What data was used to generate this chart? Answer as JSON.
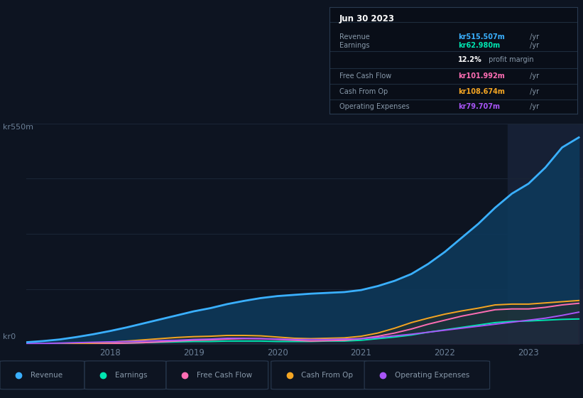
{
  "bg_color": "#0d1421",
  "chart_bg": "#0d1421",
  "grid_color": "#1a2535",
  "title_label": "kr550m",
  "bottom_label": "kr0",
  "x_ticks": [
    "2018",
    "2019",
    "2020",
    "2021",
    "2022",
    "2023"
  ],
  "x_tick_pos": [
    2018,
    2019,
    2020,
    2021,
    2022,
    2023
  ],
  "ylim": [
    0,
    550
  ],
  "xlim": [
    2017.0,
    2023.65
  ],
  "info_box": {
    "title": "Jun 30 2023",
    "rows": [
      {
        "label": "Revenue",
        "value": "kr515.507m",
        "value_color": "#3ab0ff",
        "has_yr": true
      },
      {
        "label": "Earnings",
        "value": "kr62.980m",
        "value_color": "#00e5b0",
        "has_yr": true
      },
      {
        "label": "",
        "value": "12.2%",
        "suffix": " profit margin",
        "value_color": "#ffffff",
        "has_yr": false
      },
      {
        "label": "Free Cash Flow",
        "value": "kr101.992m",
        "value_color": "#ff6eb4",
        "has_yr": true
      },
      {
        "label": "Cash From Op",
        "value": "kr108.674m",
        "value_color": "#f5a623",
        "has_yr": true
      },
      {
        "label": "Operating Expenses",
        "value": "kr79.707m",
        "value_color": "#a855f7",
        "has_yr": true
      }
    ]
  },
  "legend": [
    {
      "label": "Revenue",
      "color": "#3ab0ff"
    },
    {
      "label": "Earnings",
      "color": "#00e5b0"
    },
    {
      "label": "Free Cash Flow",
      "color": "#ff6eb4"
    },
    {
      "label": "Cash From Op",
      "color": "#f5a623"
    },
    {
      "label": "Operating Expenses",
      "color": "#a855f7"
    }
  ],
  "series": {
    "x": [
      2017.0,
      2017.2,
      2017.4,
      2017.6,
      2017.8,
      2018.0,
      2018.2,
      2018.4,
      2018.6,
      2018.8,
      2019.0,
      2019.2,
      2019.4,
      2019.6,
      2019.8,
      2020.0,
      2020.2,
      2020.4,
      2020.6,
      2020.8,
      2021.0,
      2021.2,
      2021.4,
      2021.6,
      2021.8,
      2022.0,
      2022.2,
      2022.4,
      2022.6,
      2022.8,
      2023.0,
      2023.2,
      2023.4,
      2023.6
    ],
    "revenue": [
      5,
      8,
      12,
      18,
      25,
      33,
      42,
      52,
      62,
      72,
      82,
      90,
      100,
      108,
      115,
      120,
      123,
      126,
      128,
      130,
      135,
      145,
      158,
      175,
      200,
      230,
      265,
      300,
      340,
      375,
      400,
      440,
      490,
      515
    ],
    "earnings": [
      0,
      0,
      0,
      0,
      1,
      2,
      3,
      4,
      5,
      6,
      7,
      7,
      8,
      8,
      8,
      7,
      7,
      7,
      8,
      8,
      10,
      14,
      18,
      23,
      30,
      36,
      42,
      48,
      54,
      57,
      58,
      60,
      62,
      63
    ],
    "fcf": [
      -3,
      -2,
      -1,
      0,
      1,
      2,
      3,
      4,
      6,
      8,
      10,
      11,
      13,
      14,
      14,
      12,
      10,
      8,
      9,
      10,
      14,
      20,
      28,
      38,
      50,
      60,
      70,
      78,
      86,
      88,
      88,
      92,
      98,
      102
    ],
    "cashfromop": [
      -2,
      -1,
      0,
      1,
      3,
      5,
      8,
      11,
      14,
      17,
      19,
      20,
      22,
      22,
      21,
      18,
      15,
      14,
      15,
      16,
      20,
      28,
      40,
      54,
      65,
      75,
      83,
      90,
      98,
      100,
      100,
      103,
      106,
      109
    ],
    "opex": [
      2,
      2,
      3,
      4,
      5,
      6,
      7,
      8,
      9,
      10,
      12,
      13,
      15,
      15,
      14,
      13,
      12,
      12,
      12,
      13,
      14,
      17,
      21,
      25,
      30,
      35,
      40,
      45,
      50,
      55,
      60,
      65,
      72,
      80
    ]
  },
  "highlight_x_start": 2022.75,
  "highlight_x_end": 2023.65
}
